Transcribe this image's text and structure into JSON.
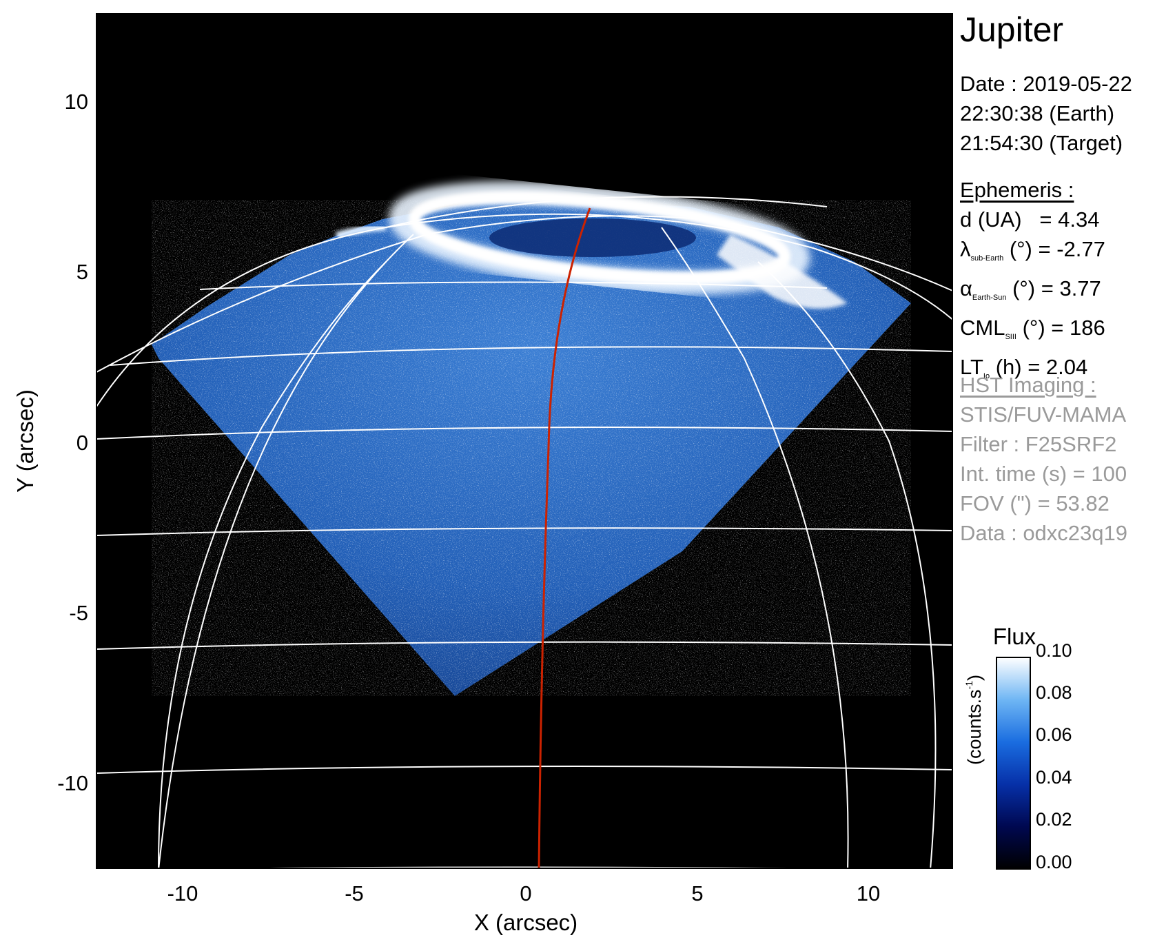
{
  "figure": {
    "title": "Jupiter",
    "date_line": "Date : 2019-05-22",
    "earth_time": "22:30:38 (Earth)",
    "target_time": "21:54:30 (Target)"
  },
  "ephemeris": {
    "heading": "Ephemeris :",
    "d_label": "d (UA)",
    "d_value": "= 4.34",
    "lambda_symbol": "λ",
    "lambda_sub": "sub-Earth",
    "lambda_rest": "(°) = -2.77",
    "alpha_symbol": "α",
    "alpha_sub": "Earth-Sun",
    "alpha_rest": "(°) = 3.77",
    "cml_symbol": "CML",
    "cml_sub": "SIII",
    "cml_rest": "(°) = 186",
    "lt_symbol": "LT",
    "lt_sub": "Io",
    "lt_rest": "(h) = 2.04"
  },
  "hst_imaging": {
    "heading": "HST Imaging :",
    "instrument": "STIS/FUV-MAMA",
    "filter": "Filter : F25SRF2",
    "int_time": "Int. time (s) = 100",
    "fov": "FOV (\") = 53.82",
    "data": "Data : odxc23q19"
  },
  "colorbar": {
    "title": "Flux",
    "unit_main": "(counts.s",
    "unit_sup": "-1",
    "unit_close": ")",
    "ticks": [
      "0.00",
      "0.02",
      "0.04",
      "0.06",
      "0.08",
      "0.10"
    ],
    "tick_values": [
      0.0,
      0.02,
      0.04,
      0.06,
      0.08,
      0.1
    ],
    "min": 0.0,
    "max": 0.1,
    "colors": [
      "#000000",
      "#000850",
      "#0630a8",
      "#1a6de0",
      "#6fb6f4",
      "#ffffff"
    ]
  },
  "chart_data": {
    "type": "heatmap",
    "xlabel": "X (arcsec)",
    "ylabel": "Y (arcsec)",
    "xlim": [
      -12.5,
      12.5
    ],
    "ylim": [
      -12.5,
      12.5
    ],
    "x_ticks": [
      "-10",
      "-5",
      "0",
      "5",
      "10"
    ],
    "x_tick_values": [
      -10,
      -5,
      0,
      5,
      10
    ],
    "y_ticks": [
      "-10",
      "-5",
      "0",
      "5",
      "10"
    ],
    "y_tick_values": [
      -10,
      -5,
      0,
      5,
      10
    ],
    "colors": {
      "background": "#000000",
      "grid": "#ffffff",
      "central_meridian": "#cc2200",
      "emission": "#1a6de0"
    }
  }
}
